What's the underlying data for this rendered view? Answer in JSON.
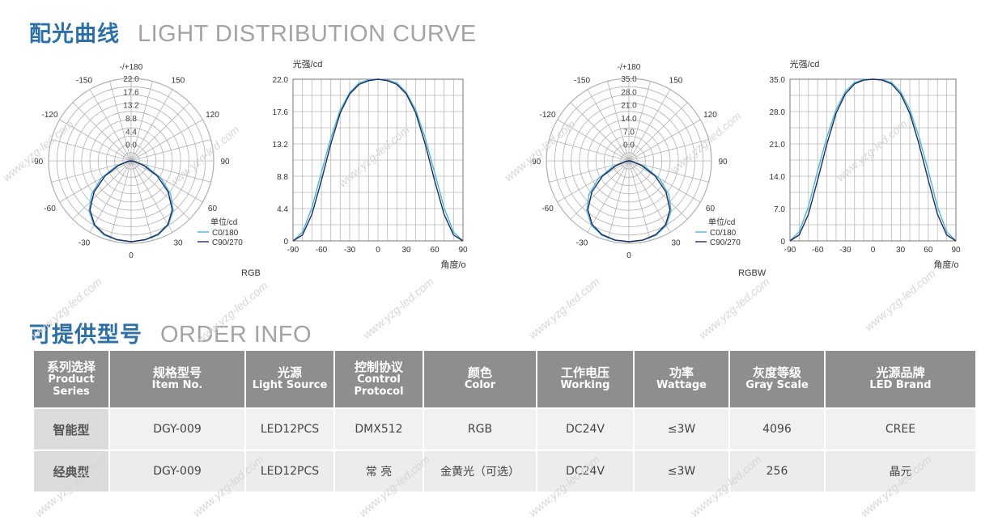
{
  "section1": {
    "title_zh": "配光曲线",
    "title_en": "LIGHT DISTRIBUTION CURVE"
  },
  "section2": {
    "title_zh": "可提供型号",
    "title_en": "ORDER INFO"
  },
  "watermark": "www.yzg-led.com",
  "colors": {
    "title_blue": "#2e6fa6",
    "c0_line": "#4fb3d6",
    "c90_line": "#1f2d5a",
    "header_gray": "#8e8e8e"
  },
  "chart_data": [
    {
      "type": "polar",
      "id": "rgb-polar",
      "tag": "RGB",
      "top_label": "-/+180",
      "angle_labels": [
        "0",
        "30",
        "60",
        "90",
        "120",
        "150",
        "-/+180",
        "-150",
        "-120",
        "-90",
        "-60",
        "-30"
      ],
      "radial_ticks": [
        0.0,
        4.4,
        8.8,
        13.2,
        17.6,
        22.0
      ],
      "radial_tick_labels": [
        "0.0",
        "4.4",
        "8.8",
        "13.2",
        "17.6",
        "22.0"
      ],
      "legend": {
        "unit": "单位/cd",
        "items": [
          "C0/180",
          "C90/270"
        ]
      },
      "series": [
        {
          "name": "C0/180",
          "angles": [
            -90,
            -80,
            -70,
            -60,
            -50,
            -40,
            -30,
            -20,
            -10,
            0,
            10,
            20,
            30,
            40,
            50,
            60,
            70,
            80,
            90
          ],
          "values": [
            0,
            1.2,
            4.5,
            9.3,
            14.0,
            17.8,
            20.2,
            21.5,
            21.9,
            22.0,
            21.9,
            21.5,
            20.2,
            17.8,
            14.0,
            9.3,
            4.5,
            1.2,
            0
          ]
        },
        {
          "name": "C90/270",
          "angles": [
            -90,
            -80,
            -70,
            -60,
            -50,
            -40,
            -30,
            -20,
            -10,
            0,
            10,
            20,
            30,
            40,
            50,
            60,
            70,
            80,
            90
          ],
          "values": [
            0,
            0.8,
            3.6,
            8.2,
            13.2,
            17.4,
            20.0,
            21.3,
            21.8,
            22.0,
            21.8,
            21.3,
            20.0,
            17.4,
            13.2,
            8.2,
            3.6,
            0.8,
            0
          ]
        }
      ]
    },
    {
      "type": "line",
      "id": "rgb-cartesian",
      "ylabel": "光强/cd",
      "xlabel": "角度/o",
      "xlim": [
        -90,
        90
      ],
      "ylim": [
        0,
        22.0
      ],
      "x_ticks": [
        -90,
        -60,
        -30,
        0,
        30,
        60,
        90
      ],
      "y_ticks": [
        0,
        4.4,
        8.8,
        13.2,
        17.6,
        22.0
      ],
      "y_tick_labels": [
        "0",
        "4.4",
        "8.8",
        "13.2",
        "17.6",
        "22.0"
      ],
      "grid": true,
      "series": [
        {
          "name": "C0/180",
          "x": [
            -90,
            -80,
            -70,
            -60,
            -50,
            -40,
            -30,
            -20,
            -10,
            0,
            10,
            20,
            30,
            40,
            50,
            60,
            70,
            80,
            90
          ],
          "y": [
            0,
            1.2,
            4.5,
            9.3,
            14.0,
            17.8,
            20.2,
            21.5,
            21.9,
            22.0,
            21.9,
            21.5,
            20.2,
            17.8,
            14.0,
            9.3,
            4.5,
            1.2,
            0
          ]
        },
        {
          "name": "C90/270",
          "x": [
            -90,
            -80,
            -70,
            -60,
            -50,
            -40,
            -30,
            -20,
            -10,
            0,
            10,
            20,
            30,
            40,
            50,
            60,
            70,
            80,
            90
          ],
          "y": [
            0,
            0.8,
            3.6,
            8.2,
            13.2,
            17.4,
            20.0,
            21.3,
            21.8,
            22.0,
            21.8,
            21.3,
            20.0,
            17.4,
            13.2,
            8.2,
            3.6,
            0.8,
            0
          ]
        }
      ]
    },
    {
      "type": "polar",
      "id": "rgbw-polar",
      "tag": "RGBW",
      "top_label": "-/+180",
      "angle_labels": [
        "0",
        "30",
        "60",
        "90",
        "120",
        "150",
        "-/+180",
        "-150",
        "-120",
        "-90",
        "-60",
        "-30"
      ],
      "radial_ticks": [
        0.0,
        7.0,
        14.0,
        21.0,
        28.0,
        35.0
      ],
      "radial_tick_labels": [
        "0.0",
        "7.0",
        "14.0",
        "21.0",
        "28.0",
        "35.0"
      ],
      "legend": {
        "unit": "单位/cd",
        "items": [
          "C0/180",
          "C90/270"
        ]
      },
      "series": [
        {
          "name": "C0/180",
          "angles": [
            -90,
            -80,
            -70,
            -60,
            -50,
            -40,
            -30,
            -20,
            -10,
            0,
            10,
            20,
            30,
            40,
            50,
            60,
            70,
            80,
            90
          ],
          "values": [
            0,
            2.0,
            7.4,
            15.2,
            22.5,
            28.4,
            32.3,
            34.3,
            34.9,
            35.0,
            34.9,
            34.3,
            32.3,
            28.4,
            22.5,
            15.2,
            7.4,
            2.0,
            0
          ]
        },
        {
          "name": "C90/270",
          "angles": [
            -90,
            -80,
            -70,
            -60,
            -50,
            -40,
            -30,
            -20,
            -10,
            0,
            10,
            20,
            30,
            40,
            50,
            60,
            70,
            80,
            90
          ],
          "values": [
            0,
            1.3,
            5.8,
            13.2,
            21.0,
            27.6,
            31.8,
            34.0,
            34.8,
            35.0,
            34.8,
            34.0,
            31.8,
            27.6,
            21.0,
            13.2,
            5.8,
            1.3,
            0
          ]
        }
      ]
    },
    {
      "type": "line",
      "id": "rgbw-cartesian",
      "ylabel": "光强/cd",
      "xlabel": "角度/o",
      "xlim": [
        -90,
        90
      ],
      "ylim": [
        0,
        35.0
      ],
      "x_ticks": [
        -90,
        -60,
        -30,
        0,
        30,
        60,
        90
      ],
      "y_ticks": [
        0,
        7.0,
        14.0,
        21.0,
        28.0,
        35.0
      ],
      "y_tick_labels": [
        "0",
        "7.0",
        "14.0",
        "21.0",
        "28.0",
        "35.0"
      ],
      "grid": true,
      "series": [
        {
          "name": "C0/180",
          "x": [
            -90,
            -80,
            -70,
            -60,
            -50,
            -40,
            -30,
            -20,
            -10,
            0,
            10,
            20,
            30,
            40,
            50,
            60,
            70,
            80,
            90
          ],
          "y": [
            0,
            2.0,
            7.4,
            15.2,
            22.5,
            28.4,
            32.3,
            34.3,
            34.9,
            35.0,
            34.9,
            34.3,
            32.3,
            28.4,
            22.5,
            15.2,
            7.4,
            2.0,
            0
          ]
        },
        {
          "name": "C90/270",
          "x": [
            -90,
            -80,
            -70,
            -60,
            -50,
            -40,
            -30,
            -20,
            -10,
            0,
            10,
            20,
            30,
            40,
            50,
            60,
            70,
            80,
            90
          ],
          "y": [
            0,
            1.3,
            5.8,
            13.2,
            21.0,
            27.6,
            31.8,
            34.0,
            34.8,
            35.0,
            34.8,
            34.0,
            31.8,
            27.6,
            21.0,
            13.2,
            5.8,
            1.3,
            0
          ]
        }
      ]
    }
  ],
  "order_table": {
    "headers": [
      {
        "zh": "系列选择",
        "en": [
          "Product",
          "Series"
        ]
      },
      {
        "zh": "规格型号",
        "en": [
          "Item No."
        ]
      },
      {
        "zh": "光源",
        "en": [
          "Light Source"
        ]
      },
      {
        "zh": "控制协议",
        "en": [
          "Control",
          "Protocol"
        ]
      },
      {
        "zh": "颜色",
        "en": [
          "Color"
        ]
      },
      {
        "zh": "工作电压",
        "en": [
          "Working"
        ]
      },
      {
        "zh": "功率",
        "en": [
          "Wattage"
        ]
      },
      {
        "zh": "灰度等级",
        "en": [
          "Gray Scale"
        ]
      },
      {
        "zh": "光源品牌",
        "en": [
          "LED Brand"
        ]
      }
    ],
    "rows": [
      [
        "智能型",
        "DGY-009",
        "LED12PCS",
        "DMX512",
        "RGB",
        "DC24V",
        "≤3W",
        "4096",
        "CREE"
      ],
      [
        "经典型",
        "DGY-009",
        "LED12PCS",
        "常 亮",
        "金黄光（可选）",
        "DC24V",
        "≤3W",
        "256",
        "晶元"
      ]
    ]
  }
}
